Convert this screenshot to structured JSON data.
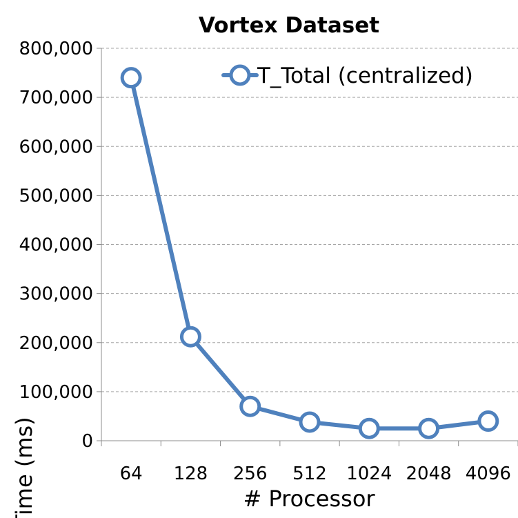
{
  "chart_data": {
    "type": "line",
    "title": "Vortex Dataset",
    "xlabel": "# Processor",
    "ylabel": "Time (ms)",
    "categories": [
      "64",
      "128",
      "256",
      "512",
      "1024",
      "2048",
      "4096"
    ],
    "series": [
      {
        "name": "T_Total (centralized)",
        "values": [
          740000,
          212000,
          70000,
          38000,
          25000,
          25000,
          40000
        ],
        "color": "#4f81bd"
      }
    ],
    "ylim": [
      0,
      800000
    ],
    "yticks": [
      0,
      100000,
      200000,
      300000,
      400000,
      500000,
      600000,
      700000,
      800000
    ],
    "ytick_labels": [
      "0",
      "100,000",
      "200,000",
      "300,000",
      "400,000",
      "500,000",
      "600,000",
      "700,000",
      "800,000"
    ],
    "grid": true,
    "legend_position": "top-right"
  }
}
